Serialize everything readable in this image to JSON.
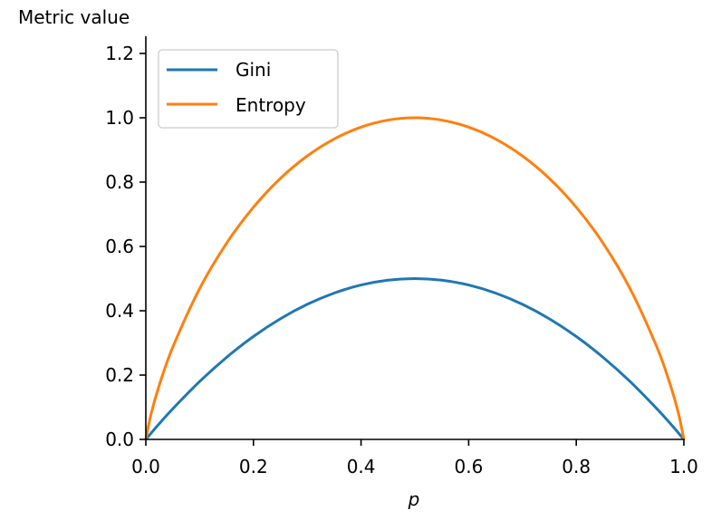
{
  "chart_data": {
    "type": "line",
    "title": "",
    "xlabel": "p",
    "ylabel": "Metric value",
    "xlim": [
      0,
      1
    ],
    "ylim": [
      0,
      1.25
    ],
    "grid": false,
    "legend_position": "top-left",
    "xticks": [
      "0.0",
      "0.2",
      "0.4",
      "0.6",
      "0.8",
      "1.0"
    ],
    "yticks": [
      "0.0",
      "0.2",
      "0.4",
      "0.6",
      "0.8",
      "1.0",
      "1.2"
    ],
    "x": [
      0,
      0.01,
      0.025,
      0.05,
      0.1,
      0.15,
      0.2,
      0.25,
      0.3,
      0.35,
      0.4,
      0.45,
      0.5,
      0.55,
      0.6,
      0.65,
      0.7,
      0.75,
      0.8,
      0.85,
      0.9,
      0.95,
      0.975,
      0.99,
      1
    ],
    "series": [
      {
        "name": "Gini",
        "color": "#1f77b4",
        "values": [
          0,
          0.0198,
          0.0488,
          0.095,
          0.18,
          0.255,
          0.32,
          0.375,
          0.42,
          0.455,
          0.48,
          0.495,
          0.5,
          0.495,
          0.48,
          0.455,
          0.42,
          0.375,
          0.32,
          0.255,
          0.18,
          0.095,
          0.0488,
          0.0198,
          0
        ]
      },
      {
        "name": "Entropy",
        "color": "#ff7f0e",
        "values": [
          0,
          0.0808,
          0.1687,
          0.2864,
          0.469,
          0.6098,
          0.7219,
          0.8113,
          0.8813,
          0.9341,
          0.971,
          0.9928,
          1,
          0.9928,
          0.971,
          0.9341,
          0.8813,
          0.8113,
          0.7219,
          0.6098,
          0.469,
          0.2864,
          0.1687,
          0.0808,
          0
        ]
      }
    ]
  }
}
